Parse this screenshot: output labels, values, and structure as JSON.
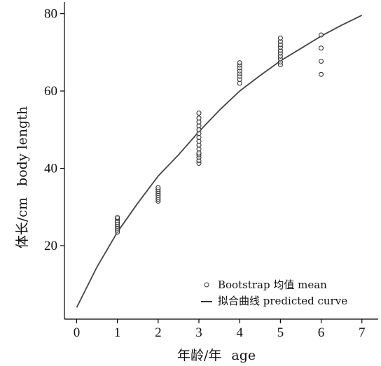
{
  "chart_data": {
    "type": "scatter",
    "xlabel_cn": "年龄/年",
    "xlabel_en": "age",
    "ylabel_cn": "体长/cm",
    "ylabel_en": "body length",
    "xlim": [
      -0.3,
      7.4
    ],
    "ylim": [
      1,
      83
    ],
    "xticks": [
      "0",
      "1",
      "2",
      "3",
      "4",
      "5",
      "6",
      "7"
    ],
    "yticks": [
      "20",
      "40",
      "60",
      "80"
    ],
    "legend": {
      "placement": "bottom-right",
      "entries": [
        {
          "marker": "circle",
          "label": "Bootstrap 均值    mean"
        },
        {
          "marker": "line",
          "label": "拟合曲线    predicted curve"
        }
      ]
    },
    "series": [
      {
        "type": "scatter",
        "points": [
          [
            1,
            23.5
          ],
          [
            1,
            24.0
          ],
          [
            1,
            24.5
          ],
          [
            1,
            25.0
          ],
          [
            1,
            25.5
          ],
          [
            1,
            26.0
          ],
          [
            1,
            26.5
          ],
          [
            1,
            27.0
          ],
          [
            1,
            27.3
          ],
          [
            2,
            31.5
          ],
          [
            2,
            32.0
          ],
          [
            2,
            32.5
          ],
          [
            2,
            33.0
          ],
          [
            2,
            33.5
          ],
          [
            2,
            34.0
          ],
          [
            2,
            34.5
          ],
          [
            2,
            35.0
          ],
          [
            3,
            41.3
          ],
          [
            3,
            42.0
          ],
          [
            3,
            42.8
          ],
          [
            3,
            43.5
          ],
          [
            3,
            44.0
          ],
          [
            3,
            45.0
          ],
          [
            3,
            46.0
          ],
          [
            3,
            47.0
          ],
          [
            3,
            48.0
          ],
          [
            3,
            49.0
          ],
          [
            3,
            50.0
          ],
          [
            3,
            51.0
          ],
          [
            3,
            52.0
          ],
          [
            3,
            53.0
          ],
          [
            3,
            54.3
          ],
          [
            4,
            62.0
          ],
          [
            4,
            63.0
          ],
          [
            4,
            63.8
          ],
          [
            4,
            64.5
          ],
          [
            4,
            65.2
          ],
          [
            4,
            66.0
          ],
          [
            4,
            66.7
          ],
          [
            4,
            67.3
          ],
          [
            5,
            66.8
          ],
          [
            5,
            67.5
          ],
          [
            5,
            68.3
          ],
          [
            5,
            69.0
          ],
          [
            5,
            69.8
          ],
          [
            5,
            70.5
          ],
          [
            5,
            71.3
          ],
          [
            5,
            72.0
          ],
          [
            5,
            72.8
          ],
          [
            5,
            73.7
          ],
          [
            6,
            64.3
          ],
          [
            6,
            67.7
          ],
          [
            6,
            71.1
          ],
          [
            6,
            74.5
          ]
        ]
      },
      {
        "type": "line",
        "points": [
          [
            0,
            4.0
          ],
          [
            0.5,
            14.5
          ],
          [
            1,
            23.5
          ],
          [
            1.5,
            31.0
          ],
          [
            2,
            38.0
          ],
          [
            2.5,
            43.5
          ],
          [
            3,
            49.5
          ],
          [
            3.5,
            55.0
          ],
          [
            4,
            60.0
          ],
          [
            4.5,
            64.0
          ],
          [
            5,
            67.8
          ],
          [
            5.5,
            71.0
          ],
          [
            6,
            74.2
          ],
          [
            6.5,
            77.0
          ],
          [
            7,
            79.6
          ]
        ]
      }
    ]
  }
}
